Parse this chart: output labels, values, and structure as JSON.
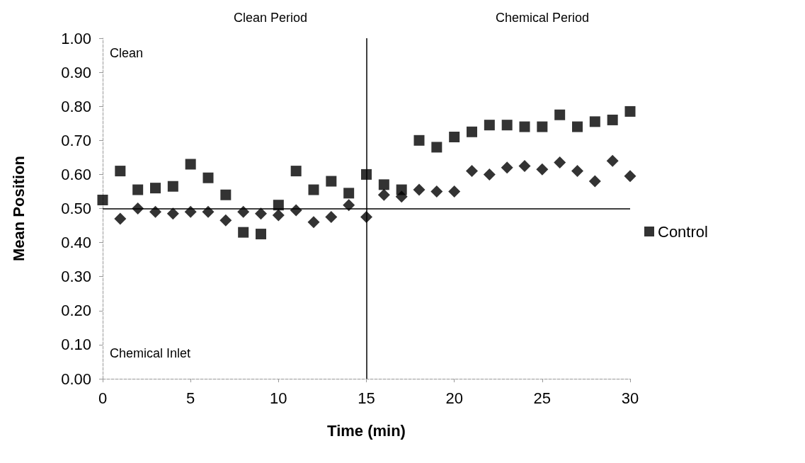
{
  "chart_data": {
    "type": "scatter",
    "xlabel": "Time (min)",
    "ylabel": "Mean Position",
    "x": [
      0,
      1,
      2,
      3,
      4,
      5,
      6,
      7,
      8,
      9,
      10,
      11,
      12,
      13,
      14,
      15,
      16,
      17,
      18,
      19,
      20,
      21,
      22,
      23,
      24,
      25,
      26,
      27,
      28,
      29,
      30
    ],
    "series": [
      {
        "color": "#000000",
        "marker": "diamond",
        "values": [
          null,
          0.47,
          0.5,
          0.49,
          0.485,
          0.49,
          0.49,
          0.465,
          0.49,
          0.485,
          0.48,
          0.495,
          0.46,
          0.475,
          0.51,
          0.475,
          0.54,
          0.535,
          0.555,
          0.55,
          0.55,
          0.61,
          0.6,
          0.62,
          0.625,
          0.615,
          0.635,
          0.61,
          0.58,
          0.64,
          0.595
        ]
      },
      {
        "name": "Control",
        "color": "#000000",
        "marker": "square",
        "values": [
          0.525,
          0.61,
          0.555,
          0.56,
          0.565,
          0.63,
          0.59,
          0.54,
          0.43,
          0.425,
          0.51,
          0.61,
          0.555,
          0.58,
          0.545,
          0.6,
          0.57,
          0.555,
          0.7,
          0.68,
          0.71,
          0.725,
          0.745,
          0.745,
          0.74,
          0.74,
          0.775,
          0.74,
          0.755,
          0.76,
          0.785
        ]
      }
    ],
    "xlim": [
      0,
      30
    ],
    "xticks": [
      0,
      5,
      10,
      15,
      20,
      25,
      30
    ],
    "ylim": [
      0,
      1
    ],
    "yticks": [
      {
        "value": 0,
        "label": "0.00"
      },
      {
        "value": 0.1,
        "label": "0.10"
      },
      {
        "value": 0.2,
        "label": "0.20"
      },
      {
        "value": 0.3,
        "label": "0.30"
      },
      {
        "value": 0.4,
        "label": "0.40"
      },
      {
        "value": 0.5,
        "label": "0.50"
      },
      {
        "value": 0.6,
        "label": "0.60"
      },
      {
        "value": 0.7,
        "label": "0.70"
      },
      {
        "value": 0.8,
        "label": "0.80"
      },
      {
        "value": 0.9,
        "label": "0.90"
      },
      {
        "value": 1,
        "label": "1.00"
      }
    ],
    "ref_lines": [
      {
        "axis": "y",
        "value": 0.5,
        "color": "#000000"
      },
      {
        "axis": "x",
        "value": 15,
        "color": "#000000"
      }
    ],
    "annotations": [
      "Clean Period",
      "Chemical Period",
      "Clean",
      "Chemical Inlet"
    ],
    "grid": false,
    "legend": "right"
  }
}
